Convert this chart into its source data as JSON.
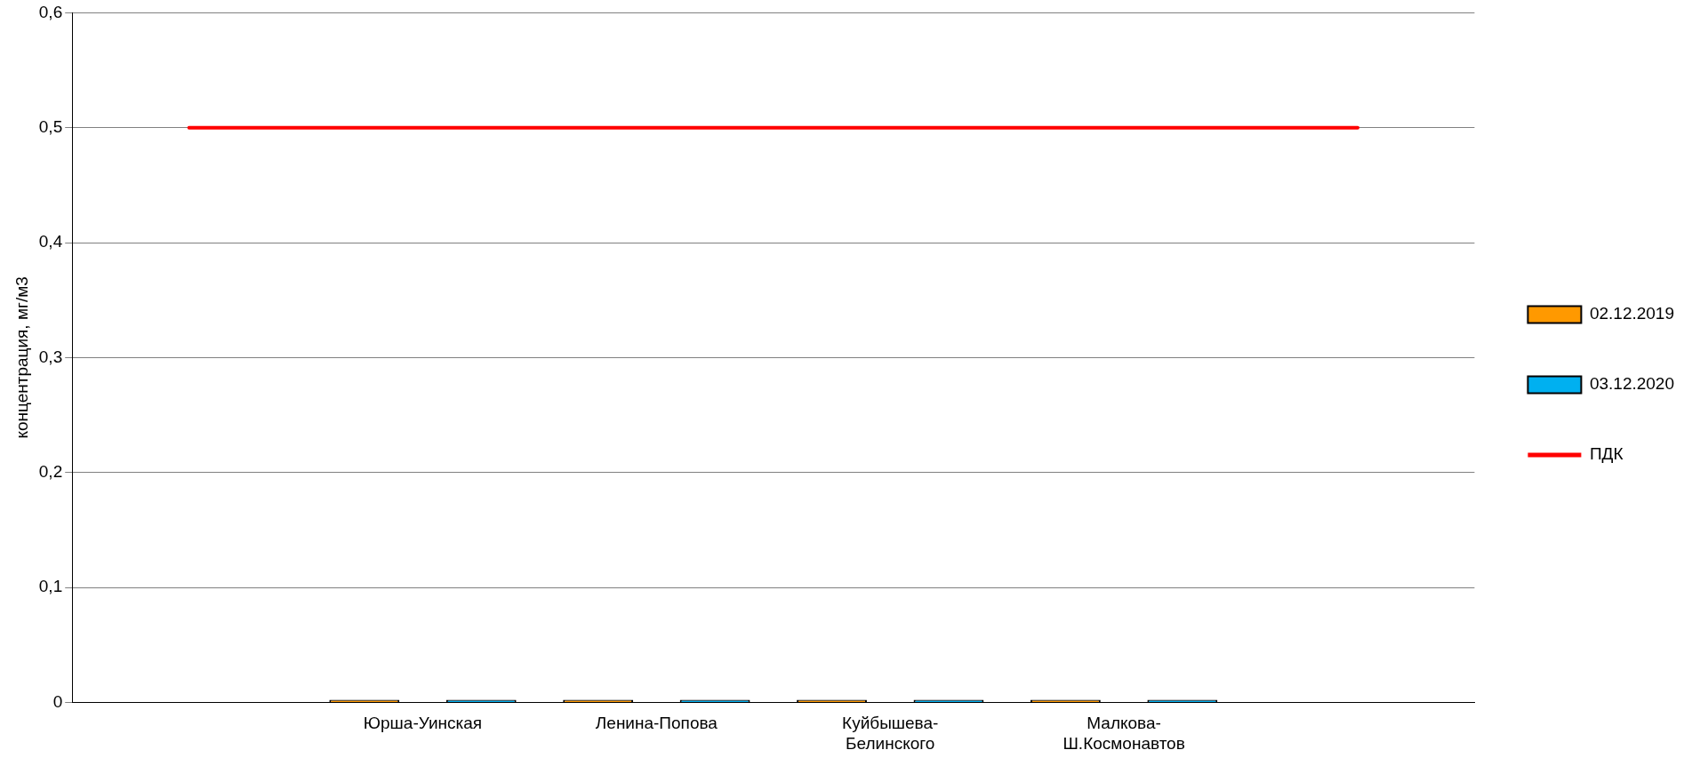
{
  "chart_data": {
    "type": "bar",
    "ylabel": "концентрация, мг/м3",
    "categories": [
      null,
      "Юрша-Уинская",
      "Ленина-Попова",
      "Куйбышева-\nБелинского",
      "Малкова-\nШ.Космонавтов",
      null
    ],
    "series": [
      {
        "name": "02.12.2019",
        "color": "#ff9900",
        "values": [
          null,
          0,
          0,
          0,
          0,
          null
        ]
      },
      {
        "name": "03.12.2020",
        "color": "#00b0f0",
        "values": [
          null,
          0,
          0,
          0,
          0,
          null
        ]
      },
      {
        "name": "ПДК",
        "type": "line",
        "color": "#ff0000",
        "values": [
          0.5,
          0.5,
          0.5,
          0.5,
          0.5,
          0.5
        ]
      }
    ],
    "ylim": [
      0,
      0.6
    ],
    "yticks": [
      0,
      {
        "value": 0.1,
        "label": "0,1"
      },
      {
        "value": 0.2,
        "label": "0,2"
      },
      {
        "value": 0.3,
        "label": "0,3"
      },
      {
        "value": 0.4,
        "label": "0,4"
      },
      {
        "value": 0.5,
        "label": "0,5"
      },
      {
        "value": 0.6,
        "label": "0,6"
      }
    ],
    "grid": "y",
    "legend": "right",
    "marker": "none"
  }
}
